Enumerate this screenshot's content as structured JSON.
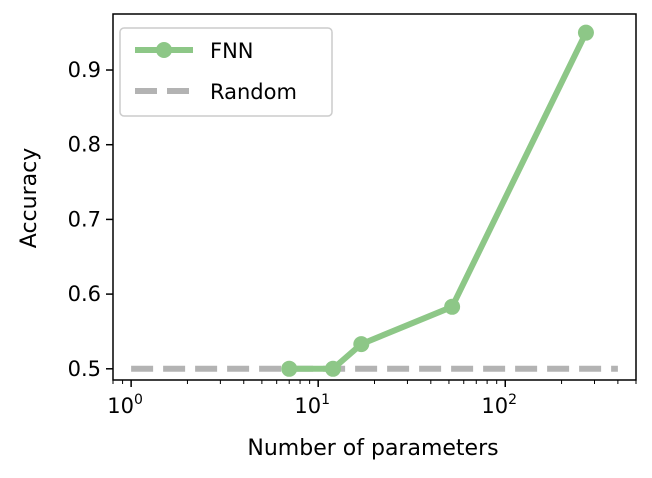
{
  "chart_data": {
    "type": "line",
    "xlabel": "Number of parameters",
    "ylabel": "Accuracy",
    "xscale": "log",
    "xlim": [
      0.8,
      500
    ],
    "ylim": [
      0.485,
      0.975
    ],
    "grid": false,
    "legend_position": "top-left",
    "x_ticks": [
      {
        "value": 1,
        "base": "10",
        "exp": "0"
      },
      {
        "value": 10,
        "base": "10",
        "exp": "1"
      },
      {
        "value": 100,
        "base": "10",
        "exp": "2"
      }
    ],
    "y_ticks": [
      0.5,
      0.6,
      0.7,
      0.8,
      0.9
    ],
    "y_tick_labels": [
      "0.5",
      "0.6",
      "0.7",
      "0.8",
      "0.9"
    ],
    "series": [
      {
        "name": "FNN",
        "style": "solid-markers",
        "color": "#8dc787",
        "x": [
          7,
          12,
          17,
          52,
          270
        ],
        "y": [
          0.5,
          0.5,
          0.533,
          0.583,
          0.95
        ]
      },
      {
        "name": "Random",
        "style": "dashed",
        "color": "#b3b3b3",
        "x": [
          1,
          400
        ],
        "y": [
          0.5,
          0.5
        ]
      }
    ]
  }
}
